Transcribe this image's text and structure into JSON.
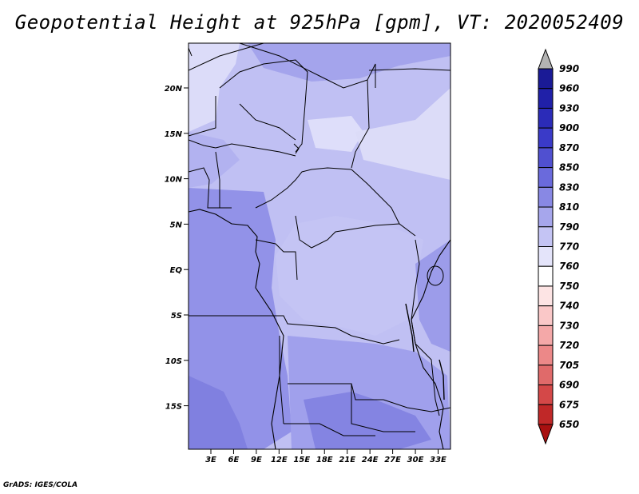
{
  "title": "Geopotential Height at 925hPa [gpm], VT: 2020052409",
  "footer": "GrADS: IGES/COLA",
  "map": {
    "lat_labels": [
      "20N",
      "15N",
      "10N",
      "5N",
      "EQ",
      "5S",
      "10S",
      "15S"
    ],
    "lon_labels": [
      "3E",
      "6E",
      "9E",
      "12E",
      "15E",
      "18E",
      "21E",
      "24E",
      "27E",
      "30E",
      "33E"
    ],
    "fill_colors": {
      "lightest": "#dedefa",
      "light": "#c8c8f6",
      "mid_light": "#b9b9f2",
      "mid": "#a8a8ee",
      "mid_dark": "#9a9aeb",
      "dark": "#8b8be6",
      "darker": "#7c7ce0"
    }
  },
  "colorbar": {
    "levels": [
      "990",
      "960",
      "930",
      "900",
      "870",
      "850",
      "830",
      "810",
      "790",
      "770",
      "760",
      "750",
      "740",
      "730",
      "720",
      "705",
      "690",
      "675",
      "650"
    ],
    "colors": [
      "#b3b3b3",
      "#1a1a96",
      "#2020a8",
      "#2b2bb8",
      "#3a3ac8",
      "#5050d0",
      "#6a6adc",
      "#8888e4",
      "#a6a6ec",
      "#c4c4f4",
      "#e4e4fa",
      "#ffffff",
      "#fde4e4",
      "#fac8c8",
      "#f4a8a8",
      "#ec8888",
      "#e06a6a",
      "#d44848",
      "#c02828",
      "#a81010"
    ]
  }
}
